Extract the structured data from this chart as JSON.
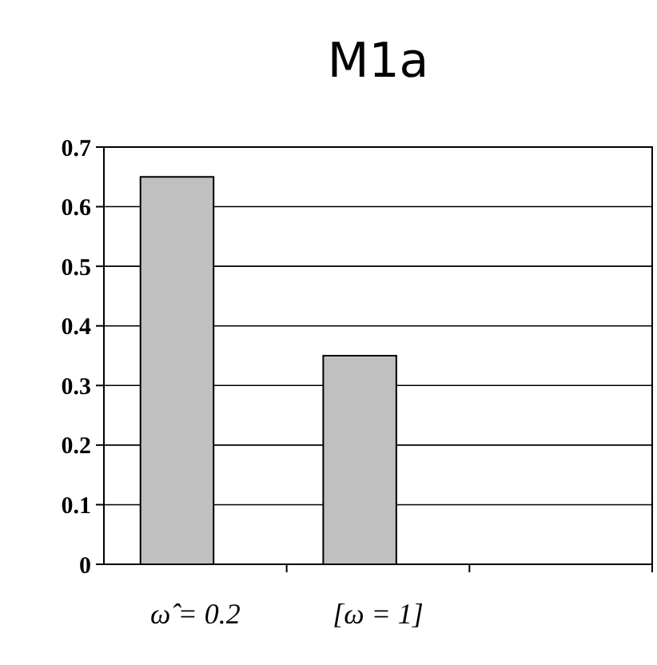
{
  "chart_data": {
    "type": "bar",
    "title": "M1a",
    "categories": [
      "ω̂ = 0.2",
      "[ω = 1]",
      null
    ],
    "values": [
      0.65,
      0.35,
      null
    ],
    "color": "#c0c0c0",
    "ylim": [
      0,
      0.7
    ],
    "yticks": [
      {
        "value": 0,
        "label": "0"
      },
      {
        "value": 0.1,
        "label": "0.1"
      },
      {
        "value": 0.2,
        "label": "0.2"
      },
      {
        "value": 0.3,
        "label": "0.3"
      },
      {
        "value": 0.4,
        "label": "0.4"
      },
      {
        "value": 0.5,
        "label": "0.5"
      },
      {
        "value": 0.6,
        "label": "0.6"
      },
      {
        "value": 0.7,
        "label": "0.7"
      }
    ],
    "grid": "y"
  }
}
